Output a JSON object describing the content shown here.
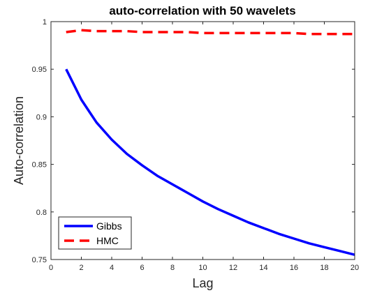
{
  "chart_data": {
    "type": "line",
    "title": "auto-correlation with 50 wavelets",
    "xlabel": "Lag",
    "ylabel": "Auto-correlation",
    "xlim": [
      0,
      20
    ],
    "ylim": [
      0.75,
      1
    ],
    "xticks": [
      0,
      2,
      4,
      6,
      8,
      10,
      12,
      14,
      16,
      18,
      20
    ],
    "yticks": [
      0.75,
      0.8,
      0.85,
      0.9,
      0.95,
      1
    ],
    "ytick_labels": [
      "0.75",
      "0.8",
      "0.85",
      "0.9",
      "0.95",
      "1"
    ],
    "grid": false,
    "legend_position": "bottom-left",
    "x": [
      1,
      2,
      3,
      4,
      5,
      6,
      7,
      8,
      9,
      10,
      11,
      12,
      13,
      14,
      15,
      16,
      17,
      18,
      19,
      20
    ],
    "series": [
      {
        "name": "Gibbs",
        "color": "#0000ff",
        "style": "solid",
        "values": [
          0.95,
          0.918,
          0.894,
          0.876,
          0.861,
          0.849,
          0.838,
          0.829,
          0.82,
          0.811,
          0.803,
          0.796,
          0.789,
          0.783,
          0.777,
          0.772,
          0.767,
          0.763,
          0.759,
          0.755
        ]
      },
      {
        "name": "HMC",
        "color": "#ff0000",
        "style": "dashed",
        "values": [
          0.989,
          0.991,
          0.99,
          0.99,
          0.99,
          0.989,
          0.989,
          0.989,
          0.989,
          0.988,
          0.988,
          0.988,
          0.988,
          0.988,
          0.988,
          0.988,
          0.987,
          0.987,
          0.987,
          0.987
        ]
      }
    ]
  }
}
